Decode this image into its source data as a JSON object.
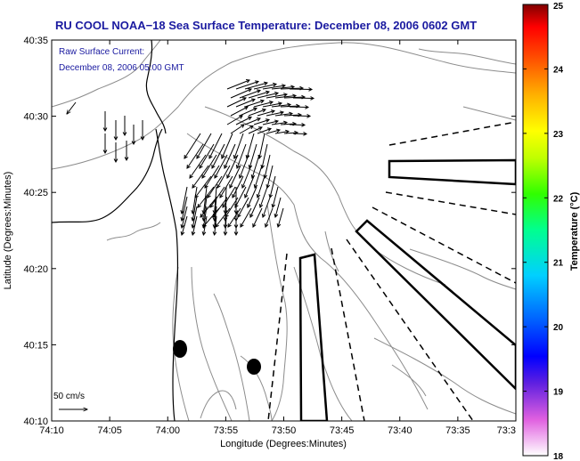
{
  "title": "RU COOL  NOAA−18  Sea Surface Temperature:  December 08, 2006 0602 GMT",
  "legend_current": {
    "line1": "Raw Surface Current:",
    "line2": "December 08, 2006 05:00 GMT"
  },
  "scale_label": "50 cm/s",
  "axes": {
    "xlabel": "Longitude (Degrees:Minutes)",
    "ylabel": "Latitude (Degrees:Minutes)",
    "x_ticks": [
      "74:10",
      "74:05",
      "74:00",
      "73:55",
      "73:50",
      "73:45",
      "73:40",
      "73:35",
      "73:3"
    ],
    "y_ticks": [
      "40:35",
      "40:30",
      "40:25",
      "40:20",
      "40:15",
      "40:10"
    ]
  },
  "colorbar": {
    "label": "Temperature (°C)",
    "ticks": [
      "25",
      "24",
      "23",
      "22",
      "21",
      "20",
      "19",
      "18"
    ],
    "min": 18,
    "max": 25
  },
  "colors": {
    "title": "#1a1aa0",
    "legend_text": "#1a1aa0",
    "contour": "#8c8c8c",
    "frame": "#000000"
  }
}
